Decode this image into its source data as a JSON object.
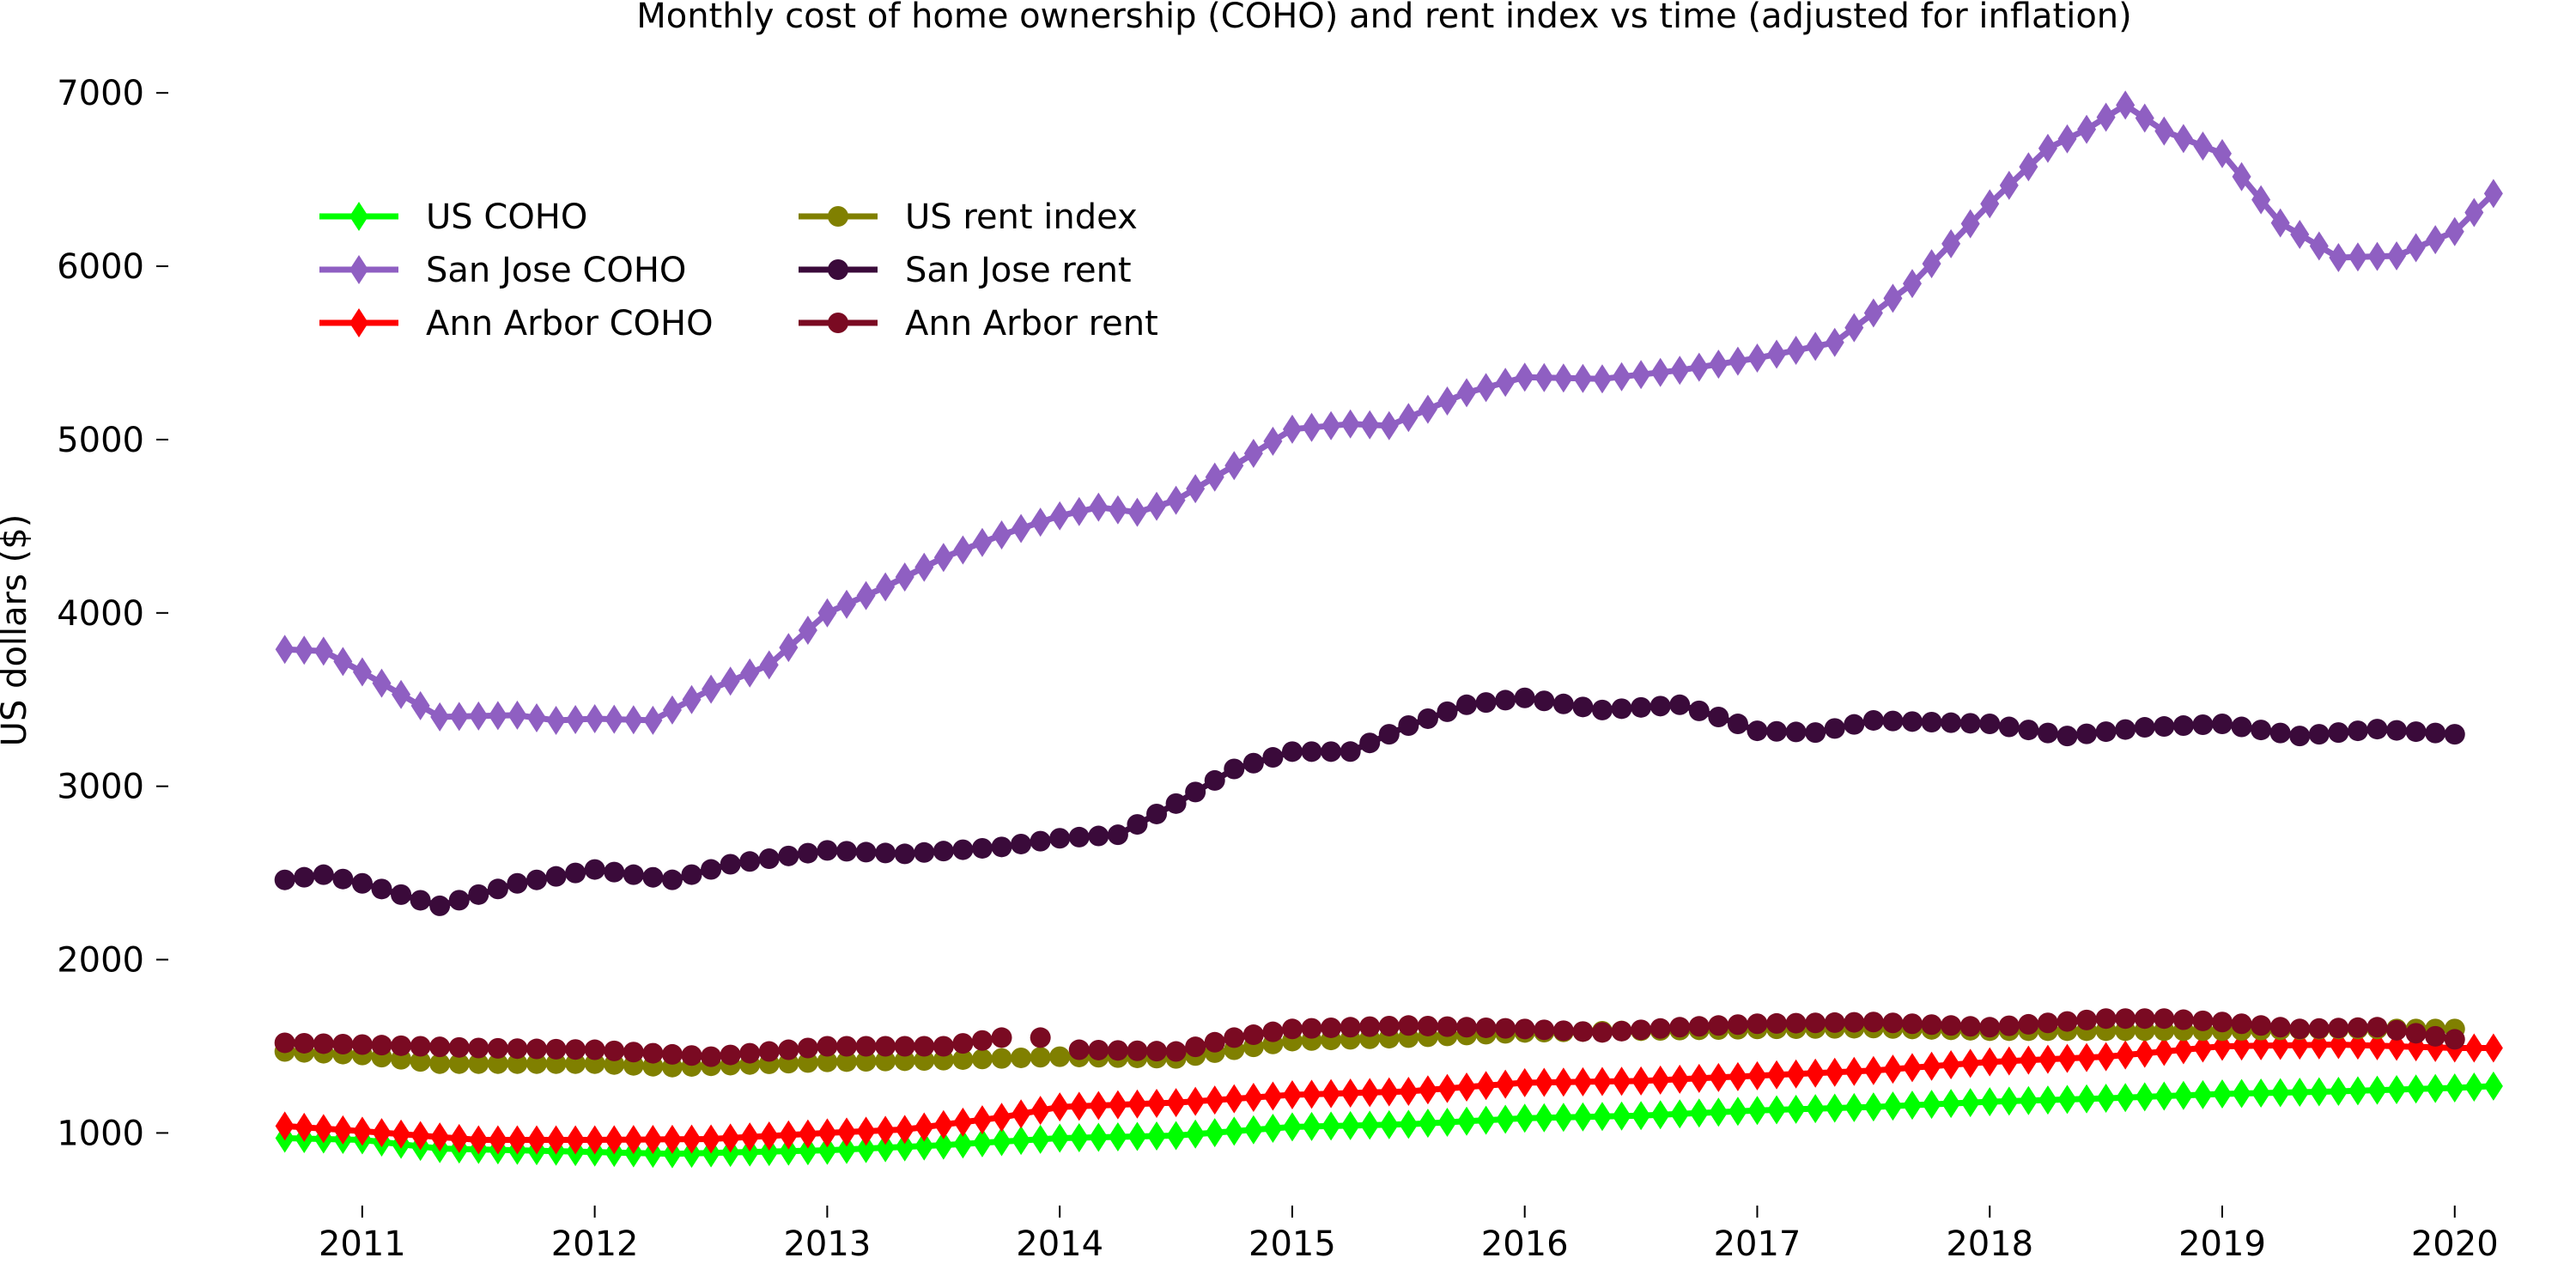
{
  "chart_data": {
    "type": "line",
    "title": "Monthly cost of home ownership (COHO) and rent index vs time (adjusted for inflation)",
    "xlabel": "",
    "ylabel": "US dollars ($)",
    "xlim": [
      2010.55,
      2020.3
    ],
    "ylim": [
      700,
      7100
    ],
    "x_ticks": [
      2011,
      2012,
      2013,
      2014,
      2015,
      2016,
      2017,
      2018,
      2019,
      2020
    ],
    "y_ticks": [
      1000,
      2000,
      3000,
      4000,
      5000,
      6000,
      7000
    ],
    "grid": false,
    "legend": {
      "placement": "top-left",
      "columns": 2
    },
    "series": [
      {
        "name": "US COHO",
        "color": "#00ff00",
        "marker": "diamond",
        "line": true,
        "x_start": 2010.667,
        "x_step": 0.08333,
        "points_per_year": 12,
        "anchor_values": [
          [
            2010.667,
            970
          ],
          [
            2011.0,
            960
          ],
          [
            2011.333,
            910
          ],
          [
            2012.0,
            890
          ],
          [
            2012.333,
            880
          ],
          [
            2013.0,
            900
          ],
          [
            2013.5,
            930
          ],
          [
            2014.0,
            970
          ],
          [
            2014.5,
            985
          ],
          [
            2015.0,
            1035
          ],
          [
            2015.5,
            1050
          ],
          [
            2016.0,
            1085
          ],
          [
            2016.5,
            1100
          ],
          [
            2017.0,
            1130
          ],
          [
            2017.5,
            1150
          ],
          [
            2018.0,
            1180
          ],
          [
            2018.5,
            1200
          ],
          [
            2019.0,
            1225
          ],
          [
            2019.5,
            1240
          ],
          [
            2020.0,
            1260
          ],
          [
            2020.167,
            1270
          ]
        ]
      },
      {
        "name": "San Jose COHO",
        "color": "#8f5fc2",
        "marker": "diamond",
        "line": true,
        "x_start": 2010.667,
        "x_step": 0.08333,
        "anchor_values": [
          [
            2010.667,
            3790
          ],
          [
            2010.833,
            3780
          ],
          [
            2011.0,
            3660
          ],
          [
            2011.333,
            3400
          ],
          [
            2011.667,
            3410
          ],
          [
            2011.833,
            3380
          ],
          [
            2012.0,
            3390
          ],
          [
            2012.25,
            3380
          ],
          [
            2012.5,
            3560
          ],
          [
            2012.75,
            3700
          ],
          [
            2013.0,
            4000
          ],
          [
            2013.25,
            4150
          ],
          [
            2013.5,
            4320
          ],
          [
            2013.75,
            4450
          ],
          [
            2014.0,
            4560
          ],
          [
            2014.167,
            4610
          ],
          [
            2014.333,
            4580
          ],
          [
            2014.5,
            4650
          ],
          [
            2014.75,
            4850
          ],
          [
            2015.0,
            5060
          ],
          [
            2015.25,
            5090
          ],
          [
            2015.417,
            5080
          ],
          [
            2015.75,
            5270
          ],
          [
            2016.0,
            5360
          ],
          [
            2016.333,
            5350
          ],
          [
            2016.667,
            5400
          ],
          [
            2017.0,
            5470
          ],
          [
            2017.333,
            5560
          ],
          [
            2017.667,
            5900
          ],
          [
            2018.0,
            6360
          ],
          [
            2018.25,
            6680
          ],
          [
            2018.417,
            6790
          ],
          [
            2018.583,
            6930
          ],
          [
            2018.75,
            6780
          ],
          [
            2019.0,
            6650
          ],
          [
            2019.25,
            6250
          ],
          [
            2019.5,
            6050
          ],
          [
            2019.75,
            6060
          ],
          [
            2020.0,
            6200
          ],
          [
            2020.167,
            6420
          ]
        ]
      },
      {
        "name": "Ann Arbor COHO",
        "color": "#ff0000",
        "marker": "diamond",
        "line": true,
        "x_start": 2010.667,
        "x_step": 0.08333,
        "anchor_values": [
          [
            2010.667,
            1040
          ],
          [
            2011.0,
            1010
          ],
          [
            2011.5,
            960
          ],
          [
            2012.0,
            960
          ],
          [
            2012.5,
            965
          ],
          [
            2013.0,
            1000
          ],
          [
            2013.333,
            1020
          ],
          [
            2013.75,
            1090
          ],
          [
            2014.0,
            1150
          ],
          [
            2014.5,
            1175
          ],
          [
            2015.0,
            1220
          ],
          [
            2015.5,
            1240
          ],
          [
            2016.0,
            1290
          ],
          [
            2016.5,
            1300
          ],
          [
            2017.0,
            1330
          ],
          [
            2017.5,
            1360
          ],
          [
            2018.0,
            1410
          ],
          [
            2018.5,
            1440
          ],
          [
            2019.0,
            1500
          ],
          [
            2019.5,
            1510
          ],
          [
            2020.0,
            1490
          ],
          [
            2020.167,
            1490
          ]
        ]
      },
      {
        "name": "US rent index",
        "color": "#808000",
        "marker": "circle",
        "line": true,
        "x_start": 2010.667,
        "x_step": 0.08333,
        "x_end": 2020.0,
        "anchor_values": [
          [
            2010.667,
            1470
          ],
          [
            2011.0,
            1450
          ],
          [
            2011.333,
            1400
          ],
          [
            2012.0,
            1400
          ],
          [
            2012.333,
            1380
          ],
          [
            2013.0,
            1410
          ],
          [
            2013.5,
            1420
          ],
          [
            2014.0,
            1440
          ],
          [
            2014.5,
            1430
          ],
          [
            2015.0,
            1530
          ],
          [
            2015.5,
            1550
          ],
          [
            2016.0,
            1580
          ],
          [
            2016.5,
            1590
          ],
          [
            2017.0,
            1600
          ],
          [
            2017.5,
            1605
          ],
          [
            2018.0,
            1590
          ],
          [
            2018.5,
            1590
          ],
          [
            2019.0,
            1590
          ],
          [
            2019.5,
            1600
          ],
          [
            2020.0,
            1600
          ]
        ]
      },
      {
        "name": "San Jose rent",
        "color": "#3a0a3a",
        "marker": "circle",
        "line": true,
        "x_start": 2010.667,
        "x_step": 0.08333,
        "x_end": 2020.0,
        "anchor_values": [
          [
            2010.667,
            2460
          ],
          [
            2010.833,
            2490
          ],
          [
            2011.0,
            2440
          ],
          [
            2011.333,
            2310
          ],
          [
            2011.667,
            2440
          ],
          [
            2012.0,
            2520
          ],
          [
            2012.333,
            2460
          ],
          [
            2012.583,
            2550
          ],
          [
            2013.0,
            2630
          ],
          [
            2013.333,
            2610
          ],
          [
            2013.75,
            2650
          ],
          [
            2014.0,
            2700
          ],
          [
            2014.25,
            2720
          ],
          [
            2014.5,
            2900
          ],
          [
            2014.75,
            3100
          ],
          [
            2015.0,
            3200
          ],
          [
            2015.25,
            3200
          ],
          [
            2015.5,
            3350
          ],
          [
            2015.75,
            3470
          ],
          [
            2016.0,
            3510
          ],
          [
            2016.333,
            3440
          ],
          [
            2016.667,
            3470
          ],
          [
            2016.833,
            3400
          ],
          [
            2017.0,
            3320
          ],
          [
            2017.25,
            3310
          ],
          [
            2017.5,
            3380
          ],
          [
            2018.0,
            3360
          ],
          [
            2018.333,
            3290
          ],
          [
            2018.667,
            3340
          ],
          [
            2019.0,
            3360
          ],
          [
            2019.333,
            3290
          ],
          [
            2019.667,
            3330
          ],
          [
            2020.0,
            3300
          ]
        ]
      },
      {
        "name": "Ann Arbor rent",
        "color": "#7a0a22",
        "marker": "circle",
        "line": true,
        "x_start": 2010.667,
        "x_step": 0.08333,
        "x_end": 2020.0,
        "gaps": [
          [
            2013.833,
            2014.083
          ]
        ],
        "extra_points": [
          [
            2013.917,
            1550
          ]
        ],
        "anchor_values": [
          [
            2010.667,
            1520
          ],
          [
            2011.0,
            1510
          ],
          [
            2011.5,
            1490
          ],
          [
            2012.0,
            1480
          ],
          [
            2012.5,
            1440
          ],
          [
            2013.0,
            1500
          ],
          [
            2013.5,
            1500
          ],
          [
            2013.75,
            1550
          ],
          [
            2014.083,
            1480
          ],
          [
            2014.5,
            1470
          ],
          [
            2014.75,
            1550
          ],
          [
            2015.0,
            1600
          ],
          [
            2015.5,
            1620
          ],
          [
            2016.0,
            1600
          ],
          [
            2016.333,
            1580
          ],
          [
            2016.667,
            1610
          ],
          [
            2017.0,
            1630
          ],
          [
            2017.5,
            1640
          ],
          [
            2018.0,
            1610
          ],
          [
            2018.5,
            1660
          ],
          [
            2018.75,
            1660
          ],
          [
            2019.0,
            1640
          ],
          [
            2019.333,
            1600
          ],
          [
            2019.667,
            1610
          ],
          [
            2020.0,
            1540
          ]
        ]
      }
    ]
  }
}
